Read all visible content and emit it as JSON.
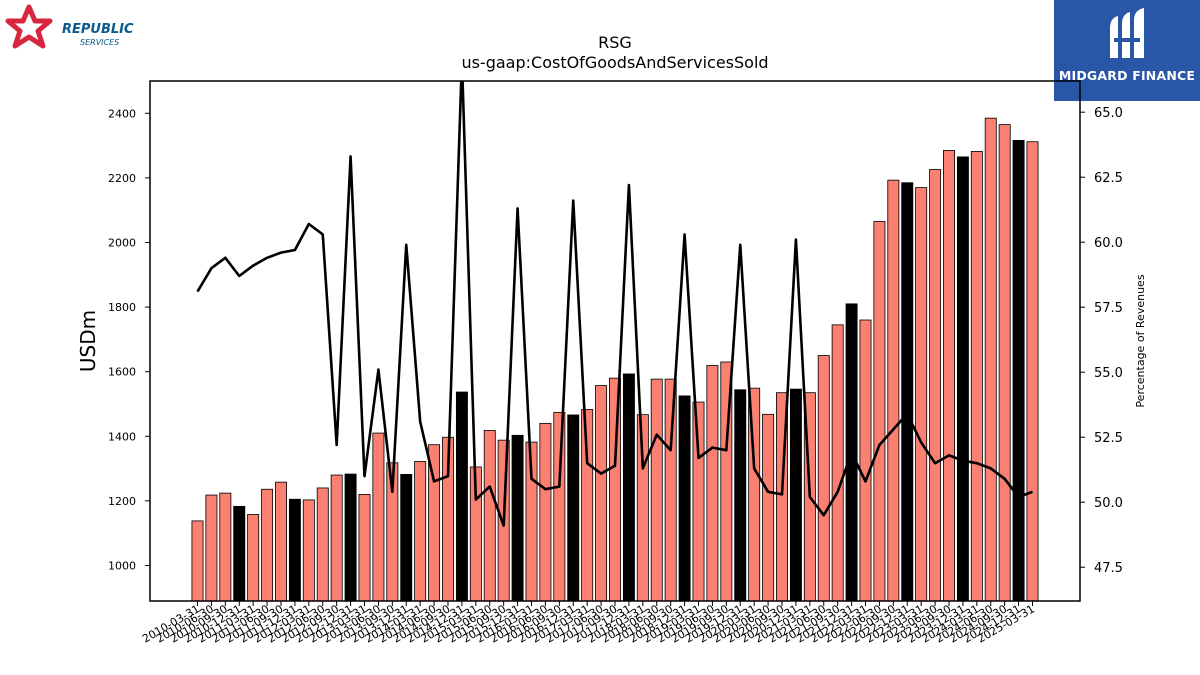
{
  "logos": {
    "left": {
      "name": "REPUBLIC",
      "sub": "SERVICES"
    },
    "right": {
      "name": "MIDGARD FINANCE"
    }
  },
  "colors": {
    "bar_normal": "#fa8072",
    "bar_highlight": "#000000",
    "line": "#000000",
    "brand_blue": "#2a56a8",
    "republic_red": "#d7263d",
    "republic_blue": "#0b5a8a"
  },
  "chart_data": {
    "type": "bar",
    "title": "RSG",
    "subtitle": "us-gaap:CostOfGoodsAndServicesSold",
    "ylabel": "USDm",
    "y2label": "Percentage of Revenues",
    "ylim": [
      890,
      2500
    ],
    "y2lim": [
      46.2,
      66.2
    ],
    "yticks": [
      1000,
      1200,
      1400,
      1600,
      1800,
      2000,
      2200,
      2400
    ],
    "y2ticks": [
      47.5,
      50.0,
      52.5,
      55.0,
      57.5,
      60.0,
      62.5,
      65.0
    ],
    "grid": false,
    "categories": [
      "2010-03-31",
      "2010-06-30",
      "2010-09-30",
      "2010-12-31",
      "2011-03-31",
      "2011-06-30",
      "2011-09-30",
      "2011-12-31",
      "2012-03-31",
      "2012-06-30",
      "2012-09-30",
      "2012-12-31",
      "2013-03-31",
      "2013-06-30",
      "2013-09-30",
      "2013-12-31",
      "2014-03-31",
      "2014-06-30",
      "2014-09-30",
      "2014-12-31",
      "2015-03-31",
      "2015-06-30",
      "2015-09-30",
      "2015-12-31",
      "2016-03-31",
      "2016-06-30",
      "2016-09-30",
      "2016-12-31",
      "2017-03-31",
      "2017-06-30",
      "2017-09-30",
      "2017-12-31",
      "2018-03-31",
      "2018-06-30",
      "2018-09-30",
      "2018-12-31",
      "2019-03-31",
      "2019-06-30",
      "2019-09-30",
      "2019-12-31",
      "2020-03-31",
      "2020-06-30",
      "2020-09-30",
      "2020-12-31",
      "2021-03-31",
      "2021-06-30",
      "2021-09-30",
      "2021-12-31",
      "2022-03-31",
      "2022-06-30",
      "2022-09-30",
      "2022-12-31",
      "2023-03-31",
      "2023-06-30",
      "2023-09-30",
      "2023-12-31",
      "2024-03-31",
      "2024-06-30",
      "2024-09-30",
      "2024-12-31",
      "2025-03-31"
    ],
    "series": [
      {
        "kind": "bar",
        "axis": "left",
        "values": [
          1138,
          1218,
          1224,
          1183,
          1158,
          1236,
          1258,
          1205,
          1203,
          1240,
          1280,
          1283,
          1220,
          1410,
          1318,
          1282,
          1322,
          1374,
          1397,
          1537,
          1305,
          1418,
          1388,
          1403,
          1382,
          1440,
          1474,
          1466,
          1483,
          1557,
          1580,
          1593,
          1467,
          1577,
          1577,
          1525,
          1506,
          1619,
          1630,
          1544,
          1549,
          1468,
          1535,
          1546,
          1535,
          1650,
          1745,
          1810,
          1760,
          2065,
          2193,
          2185,
          2170,
          2226,
          2285,
          2265,
          2282,
          2385,
          2365,
          2316,
          2312
        ],
        "highlight_every": 4,
        "highlight_offset": 3
      },
      {
        "kind": "line",
        "axis": "right",
        "values": [
          58.1,
          59.0,
          59.4,
          58.7,
          59.1,
          59.4,
          59.6,
          59.7,
          60.7,
          60.3,
          52.2,
          63.3,
          51.0,
          55.1,
          50.4,
          59.9,
          53.1,
          50.8,
          51.0,
          67.0,
          50.1,
          50.6,
          49.1,
          61.3,
          50.9,
          50.5,
          50.6,
          61.6,
          51.5,
          51.1,
          51.4,
          62.2,
          51.3,
          52.6,
          52.0,
          60.3,
          51.7,
          52.1,
          52.0,
          59.9,
          51.3,
          50.4,
          50.3,
          60.1,
          50.2,
          49.5,
          50.4,
          51.9,
          50.8,
          52.2,
          52.8,
          53.4,
          52.3,
          51.5,
          51.8,
          51.6,
          51.5,
          51.3,
          50.9,
          50.2,
          50.4
        ]
      }
    ]
  }
}
